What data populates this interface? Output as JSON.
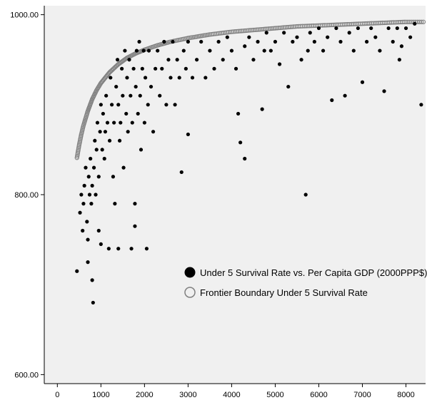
{
  "chart_data": {
    "type": "scatter",
    "title": "",
    "xlabel": "",
    "ylabel": "",
    "xlim": [
      -300,
      8450
    ],
    "ylim": [
      590,
      1010
    ],
    "x_ticks": [
      0,
      1000,
      2000,
      3000,
      4000,
      5000,
      6000,
      7000,
      8000
    ],
    "x_tick_labels": [
      "0",
      "1000",
      "2000",
      "3000",
      "4000",
      "5000",
      "6000",
      "7000",
      "8000"
    ],
    "y_ticks": [
      600,
      800,
      1000
    ],
    "y_tick_labels": [
      "600.00",
      "800.00",
      "1000.00"
    ],
    "grid": false,
    "legend_position": "lower-right",
    "plot_background": "#f0f0f0",
    "series": [
      {
        "name": "Under 5 Survival Rate vs. Per Capita GDP (2000PPP$)",
        "marker": "filled-circle",
        "color": "#000000",
        "points": [
          [
            450,
            715
          ],
          [
            520,
            780
          ],
          [
            550,
            800
          ],
          [
            580,
            760
          ],
          [
            600,
            790
          ],
          [
            620,
            810
          ],
          [
            650,
            830
          ],
          [
            680,
            770
          ],
          [
            700,
            750
          ],
          [
            700,
            725
          ],
          [
            720,
            820
          ],
          [
            740,
            800
          ],
          [
            760,
            840
          ],
          [
            780,
            790
          ],
          [
            800,
            810
          ],
          [
            800,
            705
          ],
          [
            820,
            680
          ],
          [
            840,
            830
          ],
          [
            860,
            860
          ],
          [
            880,
            800
          ],
          [
            900,
            850
          ],
          [
            920,
            880
          ],
          [
            950,
            760
          ],
          [
            950,
            820
          ],
          [
            980,
            870
          ],
          [
            1000,
            900
          ],
          [
            1000,
            745
          ],
          [
            1030,
            850
          ],
          [
            1050,
            890
          ],
          [
            1080,
            840
          ],
          [
            1100,
            870
          ],
          [
            1120,
            910
          ],
          [
            1150,
            880
          ],
          [
            1180,
            740
          ],
          [
            1200,
            860
          ],
          [
            1220,
            930
          ],
          [
            1250,
            900
          ],
          [
            1280,
            820
          ],
          [
            1300,
            880
          ],
          [
            1320,
            790
          ],
          [
            1350,
            920
          ],
          [
            1380,
            950
          ],
          [
            1400,
            900
          ],
          [
            1400,
            740
          ],
          [
            1430,
            860
          ],
          [
            1450,
            880
          ],
          [
            1480,
            940
          ],
          [
            1500,
            910
          ],
          [
            1520,
            830
          ],
          [
            1550,
            960
          ],
          [
            1580,
            890
          ],
          [
            1600,
            930
          ],
          [
            1620,
            870
          ],
          [
            1650,
            950
          ],
          [
            1680,
            910
          ],
          [
            1700,
            740
          ],
          [
            1720,
            880
          ],
          [
            1750,
            940
          ],
          [
            1780,
            790
          ],
          [
            1780,
            765
          ],
          [
            1800,
            920
          ],
          [
            1820,
            960
          ],
          [
            1850,
            890
          ],
          [
            1880,
            970
          ],
          [
            1900,
            910
          ],
          [
            1920,
            850
          ],
          [
            1950,
            940
          ],
          [
            1980,
            960
          ],
          [
            2000,
            880
          ],
          [
            2020,
            930
          ],
          [
            2050,
            740
          ],
          [
            2080,
            900
          ],
          [
            2100,
            960
          ],
          [
            2150,
            920
          ],
          [
            2200,
            870
          ],
          [
            2250,
            940
          ],
          [
            2300,
            960
          ],
          [
            2350,
            910
          ],
          [
            2400,
            940
          ],
          [
            2450,
            970
          ],
          [
            2500,
            900
          ],
          [
            2550,
            950
          ],
          [
            2600,
            930
          ],
          [
            2650,
            970
          ],
          [
            2700,
            900
          ],
          [
            2750,
            950
          ],
          [
            2800,
            930
          ],
          [
            2850,
            825
          ],
          [
            2900,
            960
          ],
          [
            2950,
            940
          ],
          [
            3000,
            970
          ],
          [
            3000,
            867
          ],
          [
            3100,
            930
          ],
          [
            3200,
            950
          ],
          [
            3300,
            970
          ],
          [
            3400,
            930
          ],
          [
            3500,
            960
          ],
          [
            3600,
            940
          ],
          [
            3700,
            970
          ],
          [
            3800,
            950
          ],
          [
            3900,
            975
          ],
          [
            4000,
            960
          ],
          [
            4100,
            940
          ],
          [
            4150,
            890
          ],
          [
            4200,
            858
          ],
          [
            4300,
            840
          ],
          [
            4300,
            965
          ],
          [
            4400,
            975
          ],
          [
            4500,
            950
          ],
          [
            4600,
            970
          ],
          [
            4700,
            895
          ],
          [
            4750,
            960
          ],
          [
            4800,
            980
          ],
          [
            4900,
            960
          ],
          [
            5000,
            970
          ],
          [
            5100,
            945
          ],
          [
            5200,
            980
          ],
          [
            5300,
            920
          ],
          [
            5400,
            970
          ],
          [
            5500,
            975
          ],
          [
            5600,
            950
          ],
          [
            5700,
            800
          ],
          [
            5750,
            960
          ],
          [
            5800,
            980
          ],
          [
            5900,
            970
          ],
          [
            6000,
            985
          ],
          [
            6100,
            960
          ],
          [
            6200,
            975
          ],
          [
            6300,
            905
          ],
          [
            6400,
            985
          ],
          [
            6500,
            970
          ],
          [
            6600,
            910
          ],
          [
            6700,
            980
          ],
          [
            6800,
            960
          ],
          [
            6900,
            985
          ],
          [
            7000,
            925
          ],
          [
            7100,
            970
          ],
          [
            7200,
            985
          ],
          [
            7300,
            975
          ],
          [
            7400,
            960
          ],
          [
            7500,
            915
          ],
          [
            7600,
            985
          ],
          [
            7700,
            970
          ],
          [
            7800,
            985
          ],
          [
            7850,
            950
          ],
          [
            7900,
            965
          ],
          [
            8000,
            985
          ],
          [
            8100,
            975
          ],
          [
            8200,
            990
          ],
          [
            8350,
            900
          ]
        ]
      },
      {
        "name": "Frontier Boundary Under 5 Survival Rate",
        "marker": "open-circle",
        "color": "#808080",
        "points": [
          [
            450,
            841
          ],
          [
            500,
            855
          ],
          [
            550,
            867
          ],
          [
            600,
            877
          ],
          [
            700,
            893
          ],
          [
            800,
            906
          ],
          [
            900,
            916
          ],
          [
            1000,
            924
          ],
          [
            1200,
            936
          ],
          [
            1400,
            945
          ],
          [
            1600,
            952
          ],
          [
            1800,
            957
          ],
          [
            2000,
            961
          ],
          [
            2300,
            966
          ],
          [
            2600,
            970
          ],
          [
            3000,
            974
          ],
          [
            3500,
            978
          ],
          [
            4000,
            981
          ],
          [
            4500,
            983
          ],
          [
            5000,
            985
          ],
          [
            5500,
            987
          ],
          [
            6000,
            988
          ],
          [
            6500,
            989
          ],
          [
            7000,
            990
          ],
          [
            7500,
            991
          ],
          [
            8000,
            992
          ],
          [
            8400,
            992
          ]
        ]
      }
    ]
  }
}
